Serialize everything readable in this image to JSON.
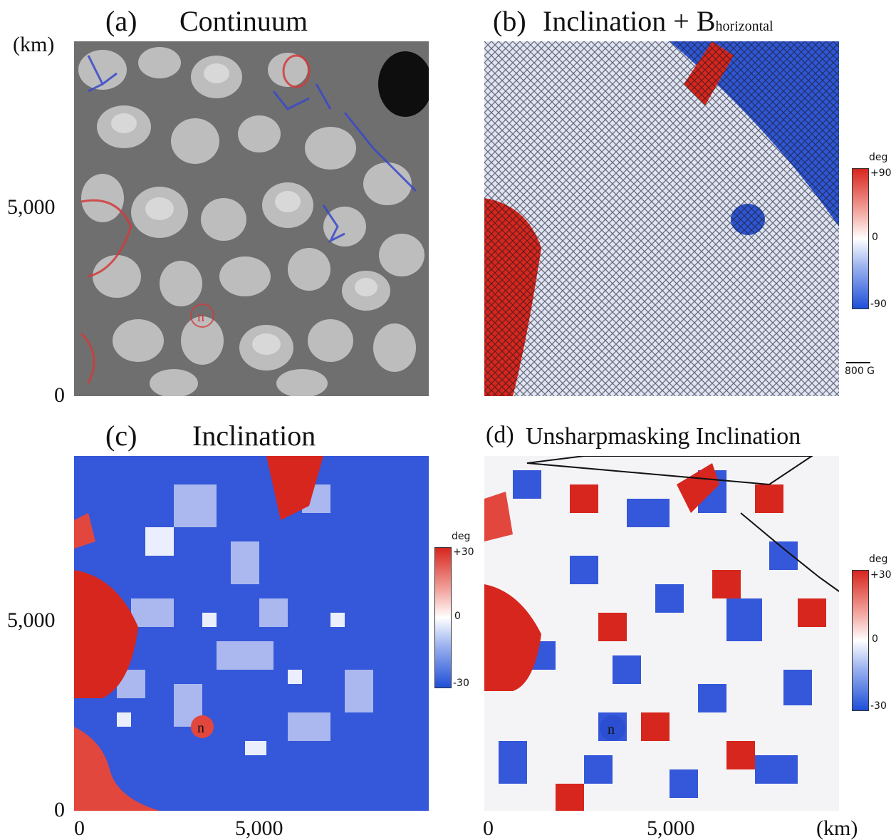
{
  "panels": {
    "a": {
      "label": "(a)",
      "title": "Continuum",
      "marker": "n"
    },
    "b": {
      "label": "(b)",
      "title_main": "Inclination + B",
      "title_sub": "horizontal",
      "scale_label": "800 G"
    },
    "c": {
      "label": "(c)",
      "title": "Inclination",
      "marker": "n"
    },
    "d": {
      "label": "(d)",
      "title": "Unsharpmasking Inclination",
      "marker": "n"
    }
  },
  "axes": {
    "unit": "(km)",
    "y_ticks": [
      "5,000",
      "0"
    ],
    "x_ticks": [
      "0",
      "5,000"
    ],
    "x_unit": "(km)"
  },
  "colorbars": {
    "b": {
      "unit": "deg",
      "top": "+90",
      "mid": "0",
      "bottom": "-90"
    },
    "c": {
      "unit": "deg",
      "top": "+30",
      "mid": "0",
      "bottom": "-30"
    },
    "d": {
      "unit": "deg",
      "top": "+30",
      "mid": "0",
      "bottom": "-30"
    }
  },
  "colors": {
    "positive": "#d7261e",
    "negative": "#1f4fd8",
    "zero": "#ffffff"
  }
}
